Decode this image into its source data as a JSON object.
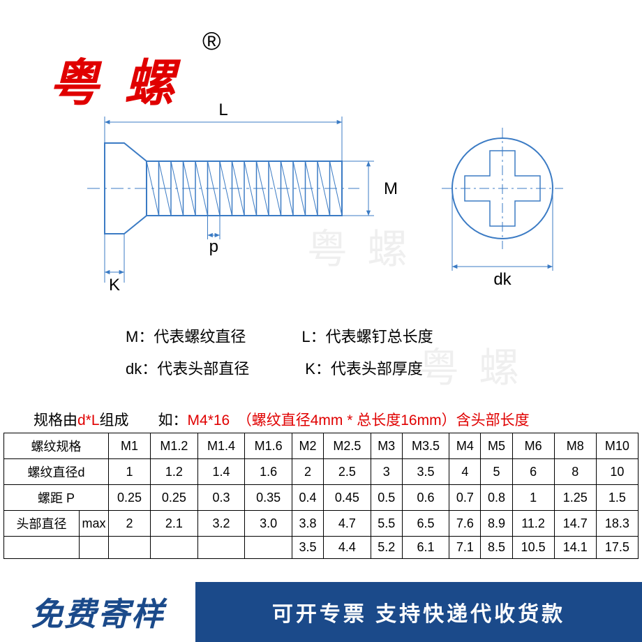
{
  "brand": {
    "name": "粤 螺",
    "registered": "®"
  },
  "colors": {
    "brand_red": "#e00000",
    "diagram_blue": "#3b7bc4",
    "banner_blue": "#1b4a8a",
    "watermark": "#000000"
  },
  "watermark_text": "粤 螺",
  "diagram": {
    "labels": {
      "L": "L",
      "M": "M",
      "p": "p",
      "K": "K",
      "dk": "dk"
    },
    "screw": {
      "head_width": 28,
      "head_dk": 130,
      "thread_length": 280,
      "thread_dia": 78,
      "pitch_count": 16
    },
    "head_circle": {
      "r": 72
    }
  },
  "legend": {
    "M": "M：代表螺纹直径",
    "L": "L：代表螺钉总长度",
    "dk": "dk：代表头部直径",
    "K": "K：代表头部厚度"
  },
  "spec": {
    "prefix": "规格由",
    "dL": "d*L",
    "mid": "组成　　如：",
    "ex": "M4*16　（螺纹直径4mm * 总长度16mm）含头部长度"
  },
  "table": {
    "headers": [
      "螺纹规格",
      "螺纹直径d",
      "螺距 P",
      "头部直径"
    ],
    "sub_label": "max",
    "sizes": [
      "M1",
      "M1.2",
      "M1.4",
      "M1.6",
      "M2",
      "M2.5",
      "M3",
      "M3.5",
      "M4",
      "M5",
      "M6",
      "M8",
      "M10"
    ],
    "d": [
      "1",
      "1.2",
      "1.4",
      "1.6",
      "2",
      "2.5",
      "3",
      "3.5",
      "4",
      "5",
      "6",
      "8",
      "10"
    ],
    "p": [
      "0.25",
      "0.25",
      "0.3",
      "0.35",
      "0.4",
      "0.45",
      "0.5",
      "0.6",
      "0.7",
      "0.8",
      "1",
      "1.25",
      "1.5"
    ],
    "dk_max": [
      "2",
      "2.1",
      "3.2",
      "3.0",
      "3.8",
      "4.7",
      "5.5",
      "6.5",
      "7.6",
      "8.9",
      "11.2",
      "14.7",
      "18.3"
    ],
    "dk_min": [
      "",
      "",
      "",
      "",
      "3.5",
      "4.4",
      "5.2",
      "6.1",
      "7.1",
      "8.5",
      "10.5",
      "14.1",
      "17.5"
    ]
  },
  "banner": {
    "left": "免费寄样",
    "right": "可开专票 支持快递代收货款"
  }
}
